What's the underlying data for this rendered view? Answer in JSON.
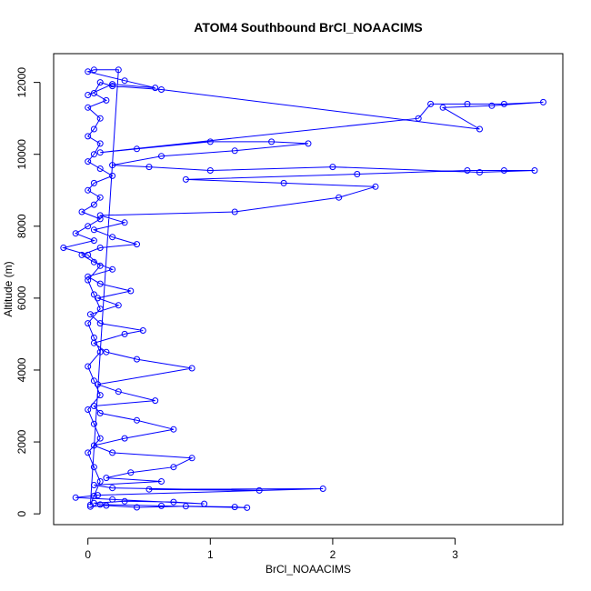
{
  "chart_data": {
    "type": "line",
    "title": "ATOM4 Southbound BrCl_NOAACIMS",
    "xlabel": "BrCl_NOAACIMS",
    "ylabel": "Altitude (m)",
    "xlim": [
      -0.28,
      3.88
    ],
    "ylim": [
      -300,
      12800
    ],
    "x_ticks": [
      0,
      1,
      2,
      3
    ],
    "y_ticks": [
      0,
      2000,
      4000,
      6000,
      8000,
      10000,
      12000
    ],
    "x_tick_labels": [
      "0",
      "1",
      "2",
      "3"
    ],
    "y_tick_labels": [
      "0",
      "2000",
      "4000",
      "6000",
      "8000",
      "10000",
      "12000"
    ],
    "grid": false,
    "legend": "none",
    "series": [
      {
        "color": "#0000FF",
        "marker": "open-circle",
        "points": [
          [
            0.02,
            200
          ],
          [
            0.15,
            230
          ],
          [
            0.4,
            180
          ],
          [
            0.8,
            210
          ],
          [
            1.2,
            190
          ],
          [
            1.3,
            170
          ],
          [
            0.6,
            220
          ],
          [
            0.1,
            260
          ],
          [
            0.05,
            300
          ],
          [
            0.3,
            350
          ],
          [
            0.7,
            330
          ],
          [
            0.95,
            280
          ],
          [
            0.2,
            400
          ],
          [
            -0.1,
            450
          ],
          [
            0.08,
            520
          ],
          [
            1.92,
            700
          ],
          [
            0.5,
            680
          ],
          [
            1.4,
            650
          ],
          [
            0.2,
            720
          ],
          [
            0.05,
            800
          ],
          [
            0.6,
            900
          ],
          [
            0.15,
            1000
          ],
          [
            0.35,
            1150
          ],
          [
            0.7,
            1300
          ],
          [
            0.85,
            1550
          ],
          [
            0.2,
            1700
          ],
          [
            0.05,
            1900
          ],
          [
            0.3,
            2100
          ],
          [
            0.7,
            2350
          ],
          [
            0.4,
            2600
          ],
          [
            0.1,
            2800
          ],
          [
            0.05,
            3000
          ],
          [
            0.55,
            3150
          ],
          [
            0.25,
            3400
          ],
          [
            0.08,
            3600
          ],
          [
            0.85,
            4050
          ],
          [
            0.4,
            4300
          ],
          [
            0.15,
            4500
          ],
          [
            0.05,
            4750
          ],
          [
            0.3,
            5000
          ],
          [
            0.45,
            5100
          ],
          [
            0.1,
            5300
          ],
          [
            0.02,
            5550
          ],
          [
            0.25,
            5800
          ],
          [
            0.08,
            6000
          ],
          [
            0.35,
            6200
          ],
          [
            0.1,
            6400
          ],
          [
            0.0,
            6600
          ],
          [
            0.2,
            6800
          ],
          [
            0.05,
            7000
          ],
          [
            -0.05,
            7200
          ],
          [
            0.1,
            7400
          ],
          [
            0.4,
            7500
          ],
          [
            0.2,
            7700
          ],
          [
            0.05,
            7900
          ],
          [
            0.3,
            8100
          ],
          [
            0.1,
            8300
          ],
          [
            1.2,
            8400
          ],
          [
            2.05,
            8800
          ],
          [
            2.35,
            9100
          ],
          [
            1.6,
            9200
          ],
          [
            0.8,
            9300
          ],
          [
            2.2,
            9450
          ],
          [
            3.1,
            9550
          ],
          [
            3.4,
            9550
          ],
          [
            3.65,
            9550
          ],
          [
            3.2,
            9500
          ],
          [
            2.0,
            9650
          ],
          [
            1.0,
            9550
          ],
          [
            0.5,
            9650
          ],
          [
            0.2,
            9700
          ],
          [
            0.6,
            9950
          ],
          [
            1.2,
            10100
          ],
          [
            1.8,
            10300
          ],
          [
            1.5,
            10350
          ],
          [
            1.0,
            10350
          ],
          [
            0.4,
            10150
          ],
          [
            0.1,
            10050
          ],
          [
            2.7,
            11000
          ],
          [
            2.8,
            11400
          ],
          [
            3.1,
            11400
          ],
          [
            3.4,
            11400
          ],
          [
            3.72,
            11450
          ],
          [
            3.3,
            11350
          ],
          [
            2.9,
            11300
          ],
          [
            3.2,
            10700
          ],
          [
            0.6,
            11800
          ],
          [
            0.2,
            11900
          ],
          [
            0.1,
            12000
          ],
          [
            0.05,
            11700
          ],
          [
            0.15,
            11500
          ],
          [
            0.0,
            11300
          ],
          [
            0.1,
            11000
          ],
          [
            0.05,
            10700
          ],
          [
            0.0,
            10500
          ],
          [
            0.1,
            10300
          ],
          [
            0.05,
            10000
          ],
          [
            0.0,
            9800
          ],
          [
            0.1,
            9600
          ],
          [
            0.2,
            9400
          ],
          [
            0.05,
            9200
          ],
          [
            0.0,
            9000
          ],
          [
            0.1,
            8800
          ],
          [
            0.05,
            8600
          ],
          [
            -0.05,
            8400
          ],
          [
            0.1,
            8200
          ],
          [
            0.0,
            8000
          ],
          [
            -0.1,
            7800
          ],
          [
            0.05,
            7600
          ],
          [
            -0.2,
            7400
          ],
          [
            0.0,
            7200
          ],
          [
            0.1,
            6900
          ],
          [
            0.0,
            6500
          ],
          [
            0.05,
            6100
          ],
          [
            0.1,
            5700
          ],
          [
            0.0,
            5300
          ],
          [
            0.05,
            4900
          ],
          [
            0.1,
            4500
          ],
          [
            0.0,
            4100
          ],
          [
            0.05,
            3700
          ],
          [
            0.1,
            3300
          ],
          [
            0.0,
            2900
          ],
          [
            0.05,
            2500
          ],
          [
            0.1,
            2100
          ],
          [
            0.0,
            1700
          ],
          [
            0.05,
            1300
          ],
          [
            0.1,
            900
          ],
          [
            0.05,
            500
          ],
          [
            0.02,
            250
          ],
          [
            0.25,
            12350
          ],
          [
            0.05,
            12350
          ],
          [
            0.0,
            12300
          ],
          [
            0.3,
            12050
          ],
          [
            0.55,
            11850
          ],
          [
            0.2,
            11950
          ],
          [
            0.0,
            11650
          ]
        ]
      }
    ]
  }
}
